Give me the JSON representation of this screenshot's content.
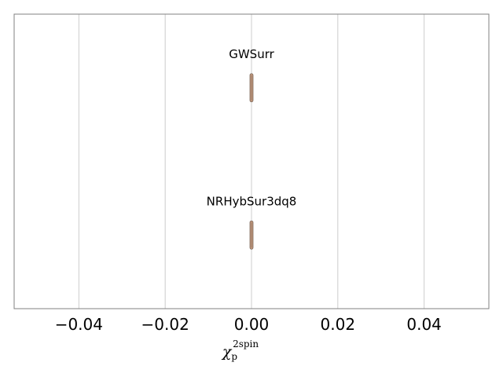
{
  "chart_data": {
    "type": "violin",
    "title": "",
    "xlabel": "χ_p^2spin",
    "xlabel_parts": {
      "symbol": "χ",
      "subscript": "p",
      "superscript": "2spin"
    },
    "xlim": [
      -0.055,
      0.055
    ],
    "xticks": [
      -0.04,
      -0.02,
      0.0,
      0.02,
      0.04
    ],
    "xtick_labels": [
      "−0.04",
      "−0.02",
      "0.00",
      "0.02",
      "0.04"
    ],
    "grid": "x",
    "series": [
      {
        "name": "GWSurr",
        "median": 0.0,
        "spread": [
          -0.0001,
          0.0001
        ],
        "color": "#c4977a",
        "edge_color": "#7a6a5e"
      },
      {
        "name": "NRHybSur3dq8",
        "median": 0.0,
        "spread": [
          -0.0001,
          0.0001
        ],
        "color": "#c4977a",
        "edge_color": "#7a6a5e"
      }
    ]
  },
  "style": {
    "frame_color": "#808080",
    "grid_color": "#cccccc",
    "background": "#ffffff"
  }
}
